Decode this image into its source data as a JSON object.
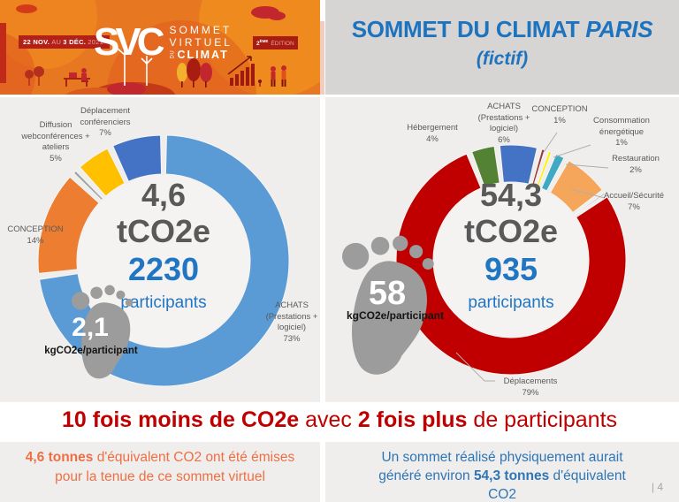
{
  "slide": {
    "banner": {
      "dates": {
        "d1": "22 NOV.",
        "sep": "AU",
        "d2": "3 DÉC.",
        "year": "2021"
      },
      "logo": {
        "acronym": "SVC",
        "word1": "SOMMET",
        "word2": "VIRTUEL",
        "du": "DU",
        "word3": "CLIMAT"
      },
      "edition": {
        "number": "2",
        "sup": "ÈME",
        "word": "ÉDITION"
      }
    },
    "title": {
      "main": "SOMMET DU CLIMAT",
      "city": "PARIS",
      "sub": "(fictif)"
    },
    "headline": {
      "bold1": "10 fois moins de CO2e",
      "mid": " avec ",
      "bold2": "2 fois plus",
      "end": " de participants"
    },
    "footnote_left": {
      "line1_bold": "4,6 tonnes",
      "line1_rest": " d'équivalent CO2 ont été  émises",
      "line2": "pour la tenue de ce sommet  virtuel"
    },
    "footnote_right": {
      "line1": "Un sommet réalisé physiquement aurait",
      "line2_pre": "généré environ ",
      "line2_bold": "54,3 tonnes",
      "line2_post": " d'équivalent",
      "line3": "CO2"
    },
    "page_number": "| 4"
  },
  "chart_data": [
    {
      "type": "pie",
      "variant": "donut",
      "center_value": "4,6",
      "center_unit": "tCO2e",
      "participants": "2230",
      "participants_label": "participants",
      "footprint_value": "2,1",
      "footprint_unit": "kgCO2e/participant",
      "segments": [
        {
          "label": "ACHATS (Prestations + logiciel)",
          "value": 73,
          "pct_label": "73%",
          "color": "#5B9BD5"
        },
        {
          "label": "CONCEPTION",
          "value": 14,
          "pct_label": "14%",
          "color": "#ED7D31"
        },
        {
          "label": "",
          "value": 1,
          "pct_label": "",
          "color": "#A5A5A5"
        },
        {
          "label": "Diffusion webconférences + ateliers",
          "value": 5,
          "pct_label": "5%",
          "color": "#FFC000"
        },
        {
          "label": "Déplacement conférenciers",
          "value": 7,
          "pct_label": "7%",
          "color": "#4472C4"
        }
      ]
    },
    {
      "type": "pie",
      "variant": "donut",
      "center_value": "54,3",
      "center_unit": "tCO2e",
      "participants": "935",
      "participants_label": "participants",
      "footprint_value": "58",
      "footprint_unit": "kgCO2e/participant",
      "segments": [
        {
          "label": "ACHATS (Prestations + logiciel)",
          "value": 6,
          "pct_label": "6%",
          "color": "#4472C4"
        },
        {
          "label": "CONCEPTION",
          "value": 1,
          "pct_label": "1%",
          "color": "#9E3B38"
        },
        {
          "label": "Consommation énergétique",
          "value": 1,
          "pct_label": "1%",
          "color": "#FFF100"
        },
        {
          "label": "Restauration",
          "value": 2,
          "pct_label": "2%",
          "color": "#3FA9C4"
        },
        {
          "label": "Accueil/Sécurité",
          "value": 7,
          "pct_label": "7%",
          "color": "#F5A65B"
        },
        {
          "label": "",
          "value": 0.4,
          "pct_label": "",
          "color": "#1F3864"
        },
        {
          "label": "Déplacements",
          "value": 79,
          "pct_label": "79%",
          "color": "#C00000"
        },
        {
          "label": "Hébergement",
          "value": 4,
          "pct_label": "4%",
          "color": "#548235"
        }
      ]
    }
  ],
  "colors": {
    "title_blue": "#1E73BE",
    "headline_red": "#C00000",
    "note_orange": "#EE6F45",
    "note_blue": "#2E75B6",
    "num_gray": "#595959",
    "num_blue": "#2176C4",
    "label_gray": "#595959",
    "foot_gray": "#9C9C9C",
    "panel_bg": "#EFEEEC",
    "header_bg": "#D7D5D4",
    "banner_red": "#B32017",
    "page_num_gray": "#A6A6A6"
  }
}
